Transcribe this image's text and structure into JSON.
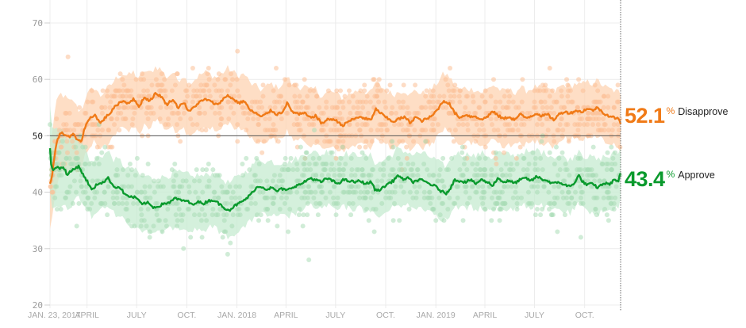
{
  "chart_data": {
    "type": "line",
    "title": "",
    "xlabel": "",
    "ylabel": "",
    "ylim": [
      20,
      70
    ],
    "yticks": [
      20,
      30,
      40,
      50,
      60,
      70
    ],
    "reference_line": 50,
    "x_start": "2017-01-23",
    "x_end": "2019-12-06",
    "xticks": [
      {
        "date": "2017-01-23",
        "label": "JAN. 23, 2017"
      },
      {
        "date": "2017-04-01",
        "label": "APRIL"
      },
      {
        "date": "2017-07-01",
        "label": "JULY"
      },
      {
        "date": "2017-10-01",
        "label": "OCT."
      },
      {
        "date": "2018-01-01",
        "label": "JAN. 2018"
      },
      {
        "date": "2018-04-01",
        "label": "APRIL"
      },
      {
        "date": "2018-07-01",
        "label": "JULY"
      },
      {
        "date": "2018-10-01",
        "label": "OCT."
      },
      {
        "date": "2019-01-01",
        "label": "JAN. 2019"
      },
      {
        "date": "2019-04-01",
        "label": "APRIL"
      },
      {
        "date": "2019-07-01",
        "label": "JULY"
      },
      {
        "date": "2019-10-01",
        "label": "OCT."
      }
    ],
    "grid": true,
    "series": [
      {
        "name": "Disapprove",
        "color": "#f07a17",
        "band_color": "#fdd3b2",
        "dot_color": "#fbbf95",
        "final_value": "52.1",
        "points": [
          [
            "2017-01-23",
            41.5
          ],
          [
            "2017-01-27",
            43.0
          ],
          [
            "2017-02-01",
            47.0
          ],
          [
            "2017-02-06",
            49.5
          ],
          [
            "2017-02-12",
            50.5
          ],
          [
            "2017-02-20",
            50.2
          ],
          [
            "2017-02-28",
            49.8
          ],
          [
            "2017-03-08",
            50.3
          ],
          [
            "2017-03-15",
            49.0
          ],
          [
            "2017-03-22",
            49.2
          ],
          [
            "2017-03-28",
            51.5
          ],
          [
            "2017-04-05",
            53.0
          ],
          [
            "2017-04-15",
            53.8
          ],
          [
            "2017-04-25",
            52.2
          ],
          [
            "2017-05-05",
            53.3
          ],
          [
            "2017-05-15",
            54.2
          ],
          [
            "2017-05-25",
            55.5
          ],
          [
            "2017-06-05",
            56.2
          ],
          [
            "2017-06-15",
            55.8
          ],
          [
            "2017-06-25",
            56.5
          ],
          [
            "2017-07-05",
            55.2
          ],
          [
            "2017-07-15",
            56.8
          ],
          [
            "2017-07-25",
            56.2
          ],
          [
            "2017-08-05",
            57.5
          ],
          [
            "2017-08-15",
            57.0
          ],
          [
            "2017-08-25",
            55.5
          ],
          [
            "2017-09-05",
            56.5
          ],
          [
            "2017-09-15",
            55.0
          ],
          [
            "2017-09-25",
            56.0
          ],
          [
            "2017-10-05",
            54.2
          ],
          [
            "2017-10-15",
            55.2
          ],
          [
            "2017-10-25",
            56.0
          ],
          [
            "2017-11-05",
            56.5
          ],
          [
            "2017-11-15",
            56.0
          ],
          [
            "2017-11-25",
            55.5
          ],
          [
            "2017-12-05",
            56.3
          ],
          [
            "2017-12-15",
            57.2
          ],
          [
            "2017-12-25",
            56.5
          ],
          [
            "2018-01-05",
            55.8
          ],
          [
            "2018-01-15",
            56.2
          ],
          [
            "2018-01-25",
            54.5
          ],
          [
            "2018-02-05",
            54.0
          ],
          [
            "2018-02-15",
            53.3
          ],
          [
            "2018-02-25",
            54.0
          ],
          [
            "2018-03-05",
            54.5
          ],
          [
            "2018-03-15",
            53.8
          ],
          [
            "2018-03-25",
            54.2
          ],
          [
            "2018-04-03",
            55.8
          ],
          [
            "2018-04-12",
            54.3
          ],
          [
            "2018-04-25",
            53.8
          ],
          [
            "2018-05-05",
            54.0
          ],
          [
            "2018-05-15",
            53.2
          ],
          [
            "2018-05-25",
            53.6
          ],
          [
            "2018-06-05",
            52.2
          ],
          [
            "2018-06-15",
            52.8
          ],
          [
            "2018-06-25",
            53.0
          ],
          [
            "2018-07-05",
            52.5
          ],
          [
            "2018-07-15",
            51.8
          ],
          [
            "2018-07-25",
            52.6
          ],
          [
            "2018-08-05",
            53.0
          ],
          [
            "2018-08-15",
            53.4
          ],
          [
            "2018-08-25",
            53.0
          ],
          [
            "2018-09-05",
            52.8
          ],
          [
            "2018-09-12",
            54.8
          ],
          [
            "2018-09-22",
            54.0
          ],
          [
            "2018-10-05",
            53.0
          ],
          [
            "2018-10-15",
            52.5
          ],
          [
            "2018-10-25",
            53.0
          ],
          [
            "2018-11-05",
            53.3
          ],
          [
            "2018-11-15",
            52.3
          ],
          [
            "2018-11-25",
            53.4
          ],
          [
            "2018-12-05",
            52.6
          ],
          [
            "2018-12-15",
            53.0
          ],
          [
            "2018-12-25",
            53.5
          ],
          [
            "2019-01-05",
            54.8
          ],
          [
            "2019-01-15",
            56.2
          ],
          [
            "2019-01-25",
            55.8
          ],
          [
            "2019-02-05",
            54.0
          ],
          [
            "2019-02-15",
            53.2
          ],
          [
            "2019-02-25",
            53.8
          ],
          [
            "2019-03-05",
            53.4
          ],
          [
            "2019-03-15",
            53.5
          ],
          [
            "2019-03-25",
            52.8
          ],
          [
            "2019-04-05",
            53.4
          ],
          [
            "2019-04-15",
            54.3
          ],
          [
            "2019-04-25",
            53.6
          ],
          [
            "2019-05-05",
            53.0
          ],
          [
            "2019-05-15",
            53.4
          ],
          [
            "2019-05-25",
            52.8
          ],
          [
            "2019-06-05",
            53.8
          ],
          [
            "2019-06-15",
            53.2
          ],
          [
            "2019-06-25",
            53.5
          ],
          [
            "2019-07-05",
            54.0
          ],
          [
            "2019-07-15",
            53.5
          ],
          [
            "2019-07-25",
            53.8
          ],
          [
            "2019-08-05",
            52.8
          ],
          [
            "2019-08-15",
            53.8
          ],
          [
            "2019-08-25",
            54.3
          ],
          [
            "2019-09-05",
            54.0
          ],
          [
            "2019-09-15",
            54.5
          ],
          [
            "2019-09-25",
            54.2
          ],
          [
            "2019-10-05",
            54.8
          ],
          [
            "2019-10-15",
            54.5
          ],
          [
            "2019-10-25",
            55.0
          ],
          [
            "2019-11-05",
            54.0
          ],
          [
            "2019-11-15",
            53.5
          ],
          [
            "2019-11-25",
            53.2
          ],
          [
            "2019-12-02",
            53.0
          ],
          [
            "2019-12-06",
            52.1
          ]
        ]
      },
      {
        "name": "Approve",
        "color": "#0a9a2d",
        "band_color": "#c6ebd0",
        "dot_color": "#a9dcb7",
        "final_value": "43.4",
        "points": [
          [
            "2017-01-23",
            47.8
          ],
          [
            "2017-01-25",
            45.0
          ],
          [
            "2017-01-28",
            44.0
          ],
          [
            "2017-02-03",
            44.5
          ],
          [
            "2017-02-10",
            44.2
          ],
          [
            "2017-02-17",
            44.5
          ],
          [
            "2017-02-24",
            43.0
          ],
          [
            "2017-03-03",
            43.8
          ],
          [
            "2017-03-10",
            44.2
          ],
          [
            "2017-03-17",
            44.7
          ],
          [
            "2017-03-24",
            43.2
          ],
          [
            "2017-04-01",
            42.0
          ],
          [
            "2017-04-10",
            40.3
          ],
          [
            "2017-04-20",
            41.5
          ],
          [
            "2017-05-01",
            41.8
          ],
          [
            "2017-05-10",
            42.5
          ],
          [
            "2017-05-20",
            41.0
          ],
          [
            "2017-06-01",
            40.8
          ],
          [
            "2017-06-10",
            39.5
          ],
          [
            "2017-06-20",
            39.2
          ],
          [
            "2017-07-01",
            39.0
          ],
          [
            "2017-07-10",
            37.8
          ],
          [
            "2017-07-20",
            38.2
          ],
          [
            "2017-08-01",
            37.3
          ],
          [
            "2017-08-10",
            37.5
          ],
          [
            "2017-08-20",
            38.0
          ],
          [
            "2017-09-01",
            38.2
          ],
          [
            "2017-09-10",
            39.0
          ],
          [
            "2017-09-20",
            38.5
          ],
          [
            "2017-10-01",
            38.5
          ],
          [
            "2017-10-10",
            37.8
          ],
          [
            "2017-10-20",
            38.3
          ],
          [
            "2017-11-01",
            38.0
          ],
          [
            "2017-11-10",
            38.5
          ],
          [
            "2017-11-20",
            38.6
          ],
          [
            "2017-12-01",
            37.8
          ],
          [
            "2017-12-10",
            37.2
          ],
          [
            "2017-12-18",
            36.8
          ],
          [
            "2017-12-28",
            37.6
          ],
          [
            "2018-01-10",
            38.3
          ],
          [
            "2018-01-20",
            39.0
          ],
          [
            "2018-01-28",
            39.8
          ],
          [
            "2018-02-05",
            40.8
          ],
          [
            "2018-02-15",
            41.0
          ],
          [
            "2018-02-25",
            40.5
          ],
          [
            "2018-03-05",
            40.8
          ],
          [
            "2018-03-15",
            40.2
          ],
          [
            "2018-03-25",
            40.6
          ],
          [
            "2018-04-03",
            40.3
          ],
          [
            "2018-04-15",
            41.0
          ],
          [
            "2018-04-25",
            41.3
          ],
          [
            "2018-05-05",
            41.8
          ],
          [
            "2018-05-15",
            42.5
          ],
          [
            "2018-05-25",
            42.2
          ],
          [
            "2018-06-05",
            41.8
          ],
          [
            "2018-06-15",
            42.5
          ],
          [
            "2018-06-25",
            42.0
          ],
          [
            "2018-07-05",
            41.5
          ],
          [
            "2018-07-15",
            42.2
          ],
          [
            "2018-07-25",
            42.0
          ],
          [
            "2018-08-05",
            41.8
          ],
          [
            "2018-08-15",
            42.0
          ],
          [
            "2018-08-25",
            41.5
          ],
          [
            "2018-09-05",
            41.8
          ],
          [
            "2018-09-12",
            40.3
          ],
          [
            "2018-09-22",
            40.5
          ],
          [
            "2018-10-05",
            41.5
          ],
          [
            "2018-10-15",
            42.0
          ],
          [
            "2018-10-22",
            43.0
          ],
          [
            "2018-11-01",
            42.3
          ],
          [
            "2018-11-10",
            42.5
          ],
          [
            "2018-11-20",
            41.8
          ],
          [
            "2018-12-01",
            42.2
          ],
          [
            "2018-12-10",
            42.0
          ],
          [
            "2018-12-20",
            41.5
          ],
          [
            "2019-01-01",
            41.0
          ],
          [
            "2019-01-10",
            40.2
          ],
          [
            "2019-01-20",
            39.8
          ],
          [
            "2019-01-28",
            40.8
          ],
          [
            "2019-02-05",
            42.2
          ],
          [
            "2019-02-15",
            42.0
          ],
          [
            "2019-02-25",
            41.8
          ],
          [
            "2019-03-05",
            42.2
          ],
          [
            "2019-03-15",
            41.5
          ],
          [
            "2019-03-25",
            42.2
          ],
          [
            "2019-04-05",
            41.8
          ],
          [
            "2019-04-15",
            41.2
          ],
          [
            "2019-04-25",
            42.5
          ],
          [
            "2019-05-05",
            41.8
          ],
          [
            "2019-05-15",
            42.0
          ],
          [
            "2019-05-25",
            41.6
          ],
          [
            "2019-06-05",
            42.2
          ],
          [
            "2019-06-15",
            42.5
          ],
          [
            "2019-06-25",
            42.0
          ],
          [
            "2019-07-05",
            42.8
          ],
          [
            "2019-07-15",
            42.3
          ],
          [
            "2019-07-25",
            42.0
          ],
          [
            "2019-08-05",
            41.5
          ],
          [
            "2019-08-15",
            41.8
          ],
          [
            "2019-08-25",
            41.3
          ],
          [
            "2019-09-05",
            41.0
          ],
          [
            "2019-09-15",
            42.0
          ],
          [
            "2019-09-20",
            43.0
          ],
          [
            "2019-09-28",
            41.8
          ],
          [
            "2019-10-05",
            41.3
          ],
          [
            "2019-10-15",
            41.5
          ],
          [
            "2019-10-25",
            40.8
          ],
          [
            "2019-11-05",
            41.6
          ],
          [
            "2019-11-15",
            41.4
          ],
          [
            "2019-11-25",
            42.2
          ],
          [
            "2019-12-02",
            42.0
          ],
          [
            "2019-12-06",
            43.4
          ]
        ]
      }
    ],
    "annotations": [
      {
        "series": "Disapprove",
        "value": "52.1",
        "unit": "%",
        "label": "Disapprove"
      },
      {
        "series": "Approve",
        "value": "43.4",
        "unit": "%",
        "label": "Approve"
      }
    ]
  },
  "labels": {
    "disapprove_value": "52.1",
    "disapprove_unit": "%",
    "disapprove_name": "Disapprove",
    "approve_value": "43.4",
    "approve_unit": "%",
    "approve_name": "Approve"
  }
}
